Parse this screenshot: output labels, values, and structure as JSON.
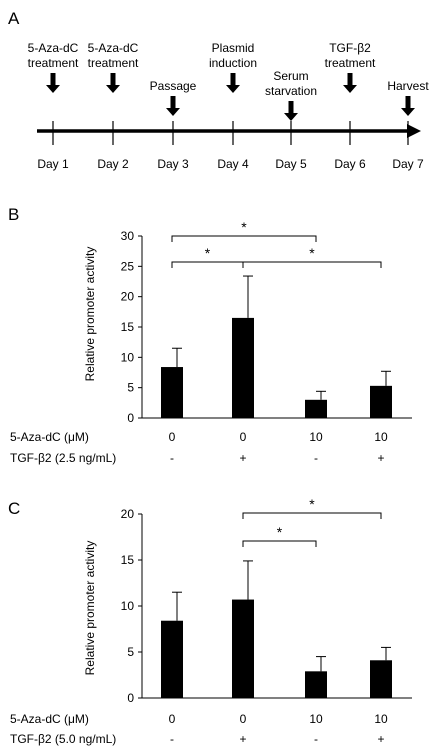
{
  "panels": {
    "A": {
      "letter": "A",
      "events": [
        {
          "lines": [
            "5-Aza-dC",
            "treatment"
          ]
        },
        {
          "lines": [
            "5-Aza-dC",
            "treatment"
          ]
        },
        {
          "lines": [
            "Passage"
          ]
        },
        {
          "lines": [
            "Plasmid",
            "induction"
          ]
        },
        {
          "lines": [
            "Serum",
            "starvation"
          ]
        },
        {
          "lines": [
            "TGF-β2",
            "treatment"
          ]
        },
        {
          "lines": [
            "Harvest"
          ]
        }
      ],
      "days": [
        "Day 1",
        "Day 2",
        "Day 3",
        "Day 4",
        "Day 5",
        "Day 6",
        "Day 7"
      ]
    },
    "B": {
      "letter": "B",
      "row_labels": [
        "5-Aza-dC (μM)",
        "TGF-β2 (2.5 ng/mL)"
      ],
      "aza_values": [
        "0",
        "0",
        "10",
        "10"
      ],
      "tgf_values": [
        "-",
        "+",
        "-",
        "+"
      ],
      "significance": [
        {
          "from": 0,
          "to": 1,
          "label": "*"
        },
        {
          "from": 0,
          "to": 2,
          "label": "*"
        },
        {
          "from": 1,
          "to": 3,
          "label": "*"
        }
      ]
    },
    "C": {
      "letter": "C",
      "row_labels": [
        "5-Aza-dC (μM)",
        "TGF-β2 (5.0 ng/mL)"
      ],
      "aza_values": [
        "0",
        "0",
        "10",
        "10"
      ],
      "tgf_values": [
        "-",
        "+",
        "-",
        "+"
      ],
      "significance": [
        {
          "from": 1,
          "to": 2,
          "label": "*"
        },
        {
          "from": 1,
          "to": 3,
          "label": "*"
        }
      ]
    }
  },
  "chart_data": [
    {
      "type": "bar",
      "panel": "B",
      "categories": [
        "0 / -",
        "0 / +",
        "10 / -",
        "10 / +"
      ],
      "values": [
        8.4,
        16.5,
        3.0,
        5.3
      ],
      "errors": [
        3.1,
        6.9,
        1.4,
        2.4
      ],
      "ylabel": "Relative promoter activity",
      "ylim": [
        0,
        30
      ],
      "yticks": [
        "0",
        "5",
        "10",
        "15",
        "20",
        "25",
        "30"
      ],
      "bar_color": "#000000"
    },
    {
      "type": "bar",
      "panel": "C",
      "categories": [
        "0 / -",
        "0 / +",
        "10 / -",
        "10 / +"
      ],
      "values": [
        8.4,
        10.7,
        2.9,
        4.1
      ],
      "errors": [
        3.1,
        4.2,
        1.6,
        1.4
      ],
      "ylabel": "Relative promoter activity",
      "ylim": [
        0,
        20
      ],
      "yticks": [
        "0",
        "5",
        "10",
        "15",
        "20"
      ],
      "bar_color": "#000000"
    }
  ]
}
